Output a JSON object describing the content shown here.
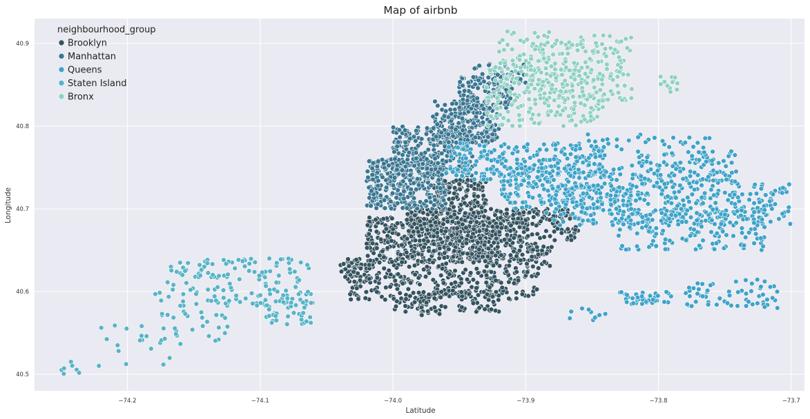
{
  "chart_data": {
    "type": "scatter",
    "title": "Map of airbnb",
    "xlabel": "Latitude",
    "ylabel": "Longitude",
    "xlim": [
      -74.27,
      -73.69
    ],
    "ylim": [
      40.48,
      40.93
    ],
    "xticks": [
      -74.2,
      -74.1,
      -74.0,
      -73.9,
      -73.8,
      -73.7
    ],
    "xtick_labels": [
      "−74.2",
      "−74.1",
      "−74.0",
      "−73.9",
      "−73.8",
      "−73.7"
    ],
    "yticks": [
      40.5,
      40.6,
      40.7,
      40.8,
      40.9
    ],
    "ytick_labels": [
      "40.5",
      "40.6",
      "40.7",
      "40.8",
      "40.9"
    ],
    "grid": true,
    "background": "#eaeaf2",
    "legend": {
      "title": "neighbourhood_group",
      "placement": "top-left"
    },
    "series": [
      {
        "name": "Brooklyn",
        "color": "#34535f",
        "regions": [
          [
            -74.035,
            40.59,
            -73.89,
            40.64
          ],
          [
            -74.02,
            40.635,
            -73.92,
            40.69
          ],
          [
            -73.99,
            40.64,
            -73.9,
            40.7
          ],
          [
            -73.97,
            40.69,
            -73.93,
            40.735
          ],
          [
            -73.95,
            40.575,
            -73.92,
            40.6
          ],
          [
            -74.0,
            40.57,
            -73.96,
            40.6
          ],
          [
            -73.92,
            40.66,
            -73.86,
            40.7
          ],
          [
            -73.9,
            40.63,
            -73.88,
            40.66
          ],
          [
            -74.04,
            40.61,
            -74.01,
            40.64
          ]
        ],
        "counts": [
          320,
          400,
          340,
          140,
          50,
          60,
          120,
          40,
          50
        ]
      },
      {
        "name": "Manhattan",
        "color": "#3a7691",
        "regions": [
          [
            -74.02,
            40.7,
            -73.96,
            40.76
          ],
          [
            -74.0,
            40.74,
            -73.94,
            40.8
          ],
          [
            -73.97,
            40.78,
            -73.92,
            40.83
          ],
          [
            -73.95,
            40.82,
            -73.91,
            40.86
          ],
          [
            -73.94,
            40.85,
            -73.9,
            40.875
          ]
        ],
        "counts": [
          340,
          280,
          220,
          120,
          50
        ]
      },
      {
        "name": "Queens",
        "color": "#3fa3c8",
        "regions": [
          [
            -73.96,
            40.735,
            -73.84,
            40.78
          ],
          [
            -73.92,
            40.7,
            -73.82,
            40.75
          ],
          [
            -73.89,
            40.68,
            -73.7,
            40.73
          ],
          [
            -73.83,
            40.65,
            -73.72,
            40.7
          ],
          [
            -73.82,
            40.73,
            -73.74,
            40.77
          ],
          [
            -73.78,
            40.58,
            -73.71,
            40.615
          ],
          [
            -73.83,
            40.585,
            -73.79,
            40.6
          ],
          [
            -73.87,
            40.565,
            -73.84,
            40.58
          ],
          [
            -73.86,
            40.77,
            -73.76,
            40.79
          ]
        ],
        "counts": [
          260,
          200,
          330,
          160,
          140,
          60,
          40,
          10,
          30
        ]
      },
      {
        "name": "Staten Island",
        "color": "#58b4c6",
        "regions": [
          [
            -74.25,
            40.5,
            -74.22,
            40.515
          ],
          [
            -74.22,
            40.51,
            -74.16,
            40.56
          ],
          [
            -74.18,
            40.54,
            -74.12,
            40.6
          ],
          [
            -74.14,
            40.58,
            -74.06,
            40.64
          ],
          [
            -74.1,
            40.56,
            -74.06,
            40.6
          ],
          [
            -74.17,
            40.6,
            -74.12,
            40.64
          ]
        ],
        "counts": [
          8,
          20,
          40,
          90,
          40,
          40
        ]
      },
      {
        "name": "Bronx",
        "color": "#8fd1c3",
        "regions": [
          [
            -73.93,
            40.8,
            -73.84,
            40.88
          ],
          [
            -73.9,
            40.83,
            -73.82,
            40.91
          ],
          [
            -73.92,
            40.86,
            -73.88,
            40.915
          ],
          [
            -73.8,
            40.84,
            -73.785,
            40.86
          ]
        ],
        "counts": [
          220,
          180,
          40,
          12
        ]
      }
    ]
  }
}
